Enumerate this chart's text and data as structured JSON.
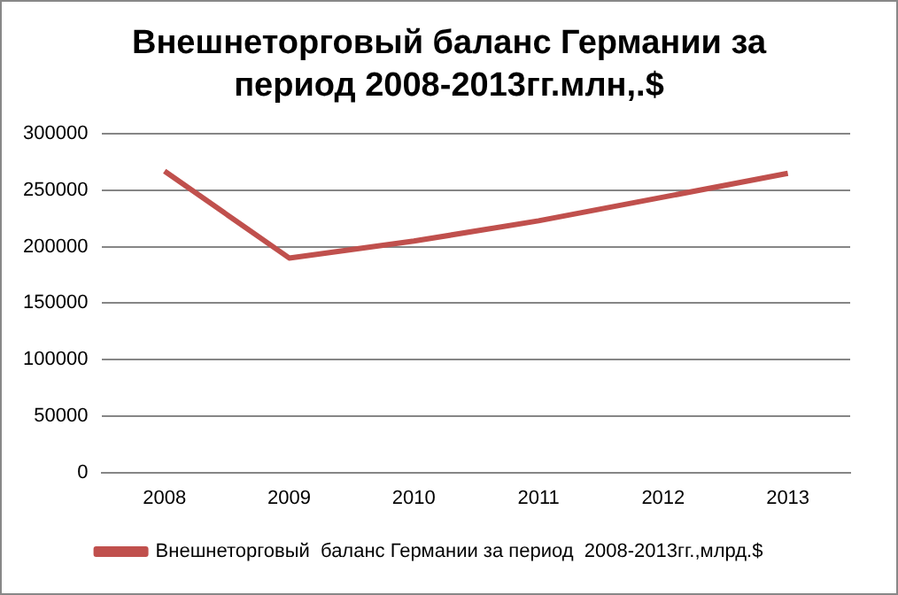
{
  "chart_data": {
    "type": "line",
    "title": "Внешнеторговый баланс Германии за период 2008-2013гг.млн,.$",
    "categories": [
      "2008",
      "2009",
      "2010",
      "2011",
      "2012",
      "2013"
    ],
    "series": [
      {
        "name": "Внешнеторговый  баланс Германии за период  2008-2013гг.,млрд.$",
        "color": "#c0504d",
        "values": [
          267000,
          190000,
          205000,
          223000,
          244000,
          265000
        ]
      }
    ],
    "ylim": [
      0,
      300000
    ],
    "yticks": [
      0,
      50000,
      100000,
      150000,
      200000,
      250000,
      300000
    ],
    "grid": "y",
    "legend": "bottom",
    "marker": "none",
    "line_style": "solid"
  }
}
